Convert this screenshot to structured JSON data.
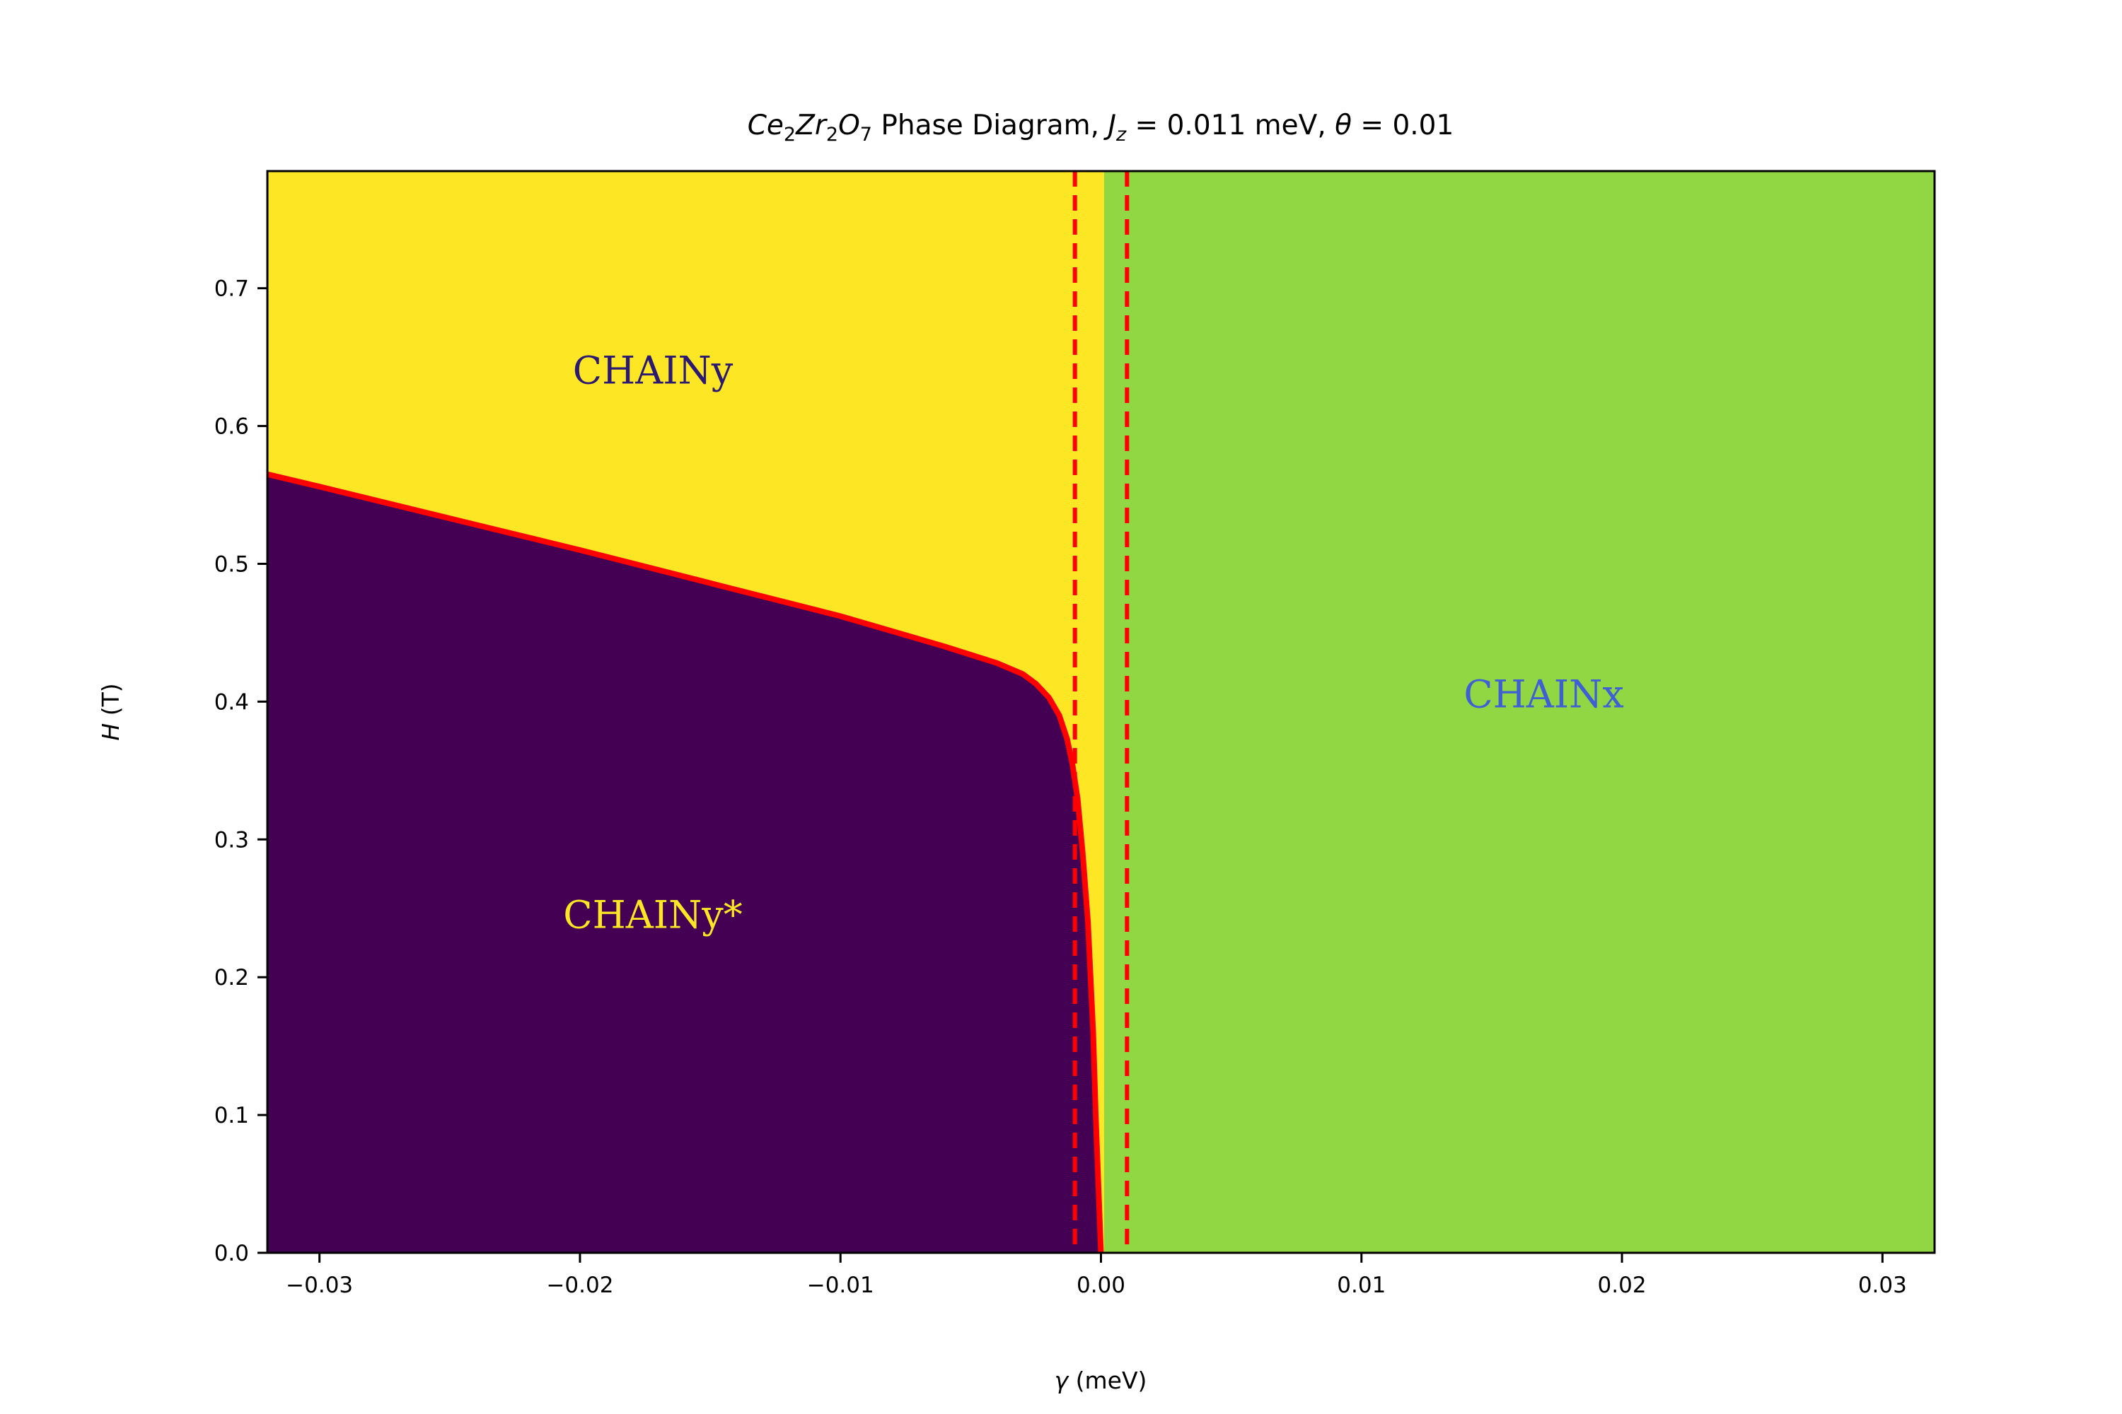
{
  "chart_data": {
    "type": "heatmap",
    "title": {
      "compound": {
        "a": "Ce",
        "a_sub": "2",
        "b": "Zr",
        "b_sub": "2",
        "c": "O",
        "c_sub": "7"
      },
      "phase_text": " Phase Diagram, ",
      "jz_symbol": "J",
      "jz_sub": "z",
      "jz_value": " = 0.011 meV, ",
      "theta_symbol": "θ",
      "theta_value": " = 0.01"
    },
    "xlabel": {
      "symbol": "γ",
      "unit": " (meV)"
    },
    "ylabel": {
      "symbol": "H",
      "unit": " (T)"
    },
    "xlim": [
      -0.032,
      0.032
    ],
    "ylim": [
      0.0,
      0.785
    ],
    "xticks": [
      -0.03,
      -0.02,
      -0.01,
      0.0,
      0.01,
      0.02,
      0.03
    ],
    "xtick_labels": [
      "−0.03",
      "−0.02",
      "−0.01",
      "0.00",
      "0.01",
      "0.02",
      "0.03"
    ],
    "yticks": [
      0.0,
      0.1,
      0.2,
      0.3,
      0.4,
      0.5,
      0.6,
      0.7
    ],
    "ytick_labels": [
      "0.0",
      "0.1",
      "0.2",
      "0.3",
      "0.4",
      "0.5",
      "0.6",
      "0.7"
    ],
    "phase_boundary": {
      "color": "#ff0000",
      "x": [
        -0.032,
        -0.03,
        -0.025,
        -0.02,
        -0.015,
        -0.01,
        -0.006,
        -0.004,
        -0.003,
        -0.0025,
        -0.002,
        -0.0016,
        -0.0013,
        -0.0011,
        -0.0009,
        -0.0007,
        -0.0005,
        -0.0003,
        -0.0002,
        -0.0001,
        0.0
      ],
      "y": [
        0.565,
        0.556,
        0.533,
        0.51,
        0.486,
        0.462,
        0.44,
        0.428,
        0.42,
        0.413,
        0.403,
        0.39,
        0.373,
        0.355,
        0.33,
        0.29,
        0.24,
        0.16,
        0.1,
        0.05,
        0.0
      ]
    },
    "green_region_start_x": 0.00012,
    "dashed_lines": {
      "color": "#ff0000",
      "x": [
        -0.001,
        0.001
      ]
    },
    "regions": [
      {
        "name": "CHAINy",
        "color": "#fde725",
        "label_color": "#2c1a72",
        "label_x": -0.0172,
        "label_y": 0.64
      },
      {
        "name": "CHAINy*",
        "color": "#440154",
        "label_color": "#fde725",
        "label_x": -0.0172,
        "label_y": 0.245
      },
      {
        "name": "CHAINx",
        "color": "#90d743",
        "label_color": "#3f5fd4",
        "label_x": 0.017,
        "label_y": 0.405
      }
    ]
  }
}
